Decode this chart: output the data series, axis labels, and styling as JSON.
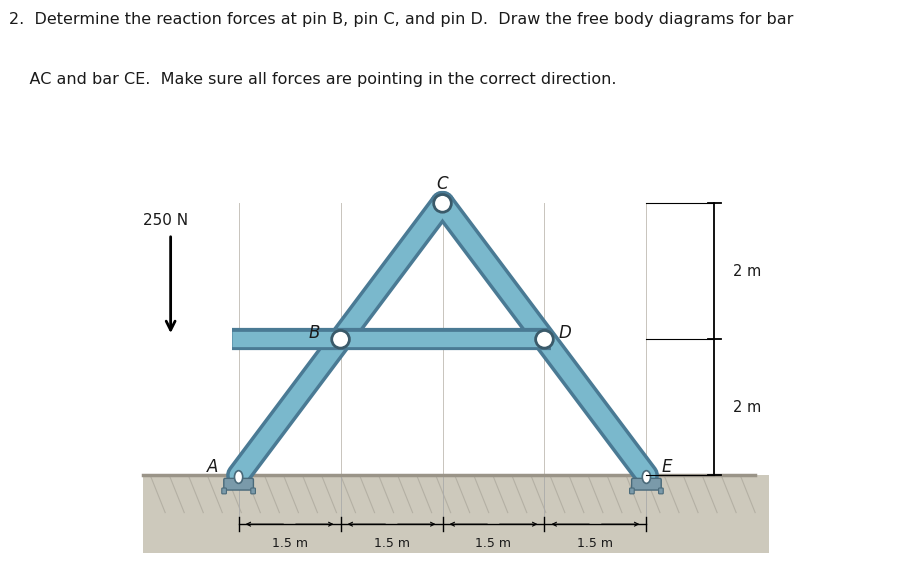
{
  "title_line1": "2.  Determine the reaction forces at pin B, pin C, and pin D.  Draw the free body diagrams for bar",
  "title_line2": "    AC and bar CE.  Make sure all forces are pointing in the correct direction.",
  "diagram_bg": "#dde4e8",
  "bar_color": "#7ab8cc",
  "bar_edge_color": "#4a7a94",
  "ground_surface_color": "#c8c4b8",
  "ground_fill_color": "#cdc9bc",
  "support_fill": "#7a9aaa",
  "support_edge": "#4a6a7a",
  "pin_fill": "white",
  "pin_edge": "#3a5a6a",
  "text_color": "#1a1a1a",
  "force_label": "250 N",
  "dim_y_label": "2 m",
  "dim_x_labels": [
    "-1.5 m-",
    "-1.5 m-",
    "-1.5 m-",
    "-1.5 m-"
  ],
  "A": [
    0.0,
    0.0
  ],
  "B": [
    1.5,
    2.0
  ],
  "C": [
    3.0,
    4.0
  ],
  "D": [
    4.5,
    2.0
  ],
  "E": [
    6.0,
    0.0
  ],
  "xlim": [
    -1.5,
    8.0
  ],
  "ylim": [
    -1.2,
    5.2
  ]
}
